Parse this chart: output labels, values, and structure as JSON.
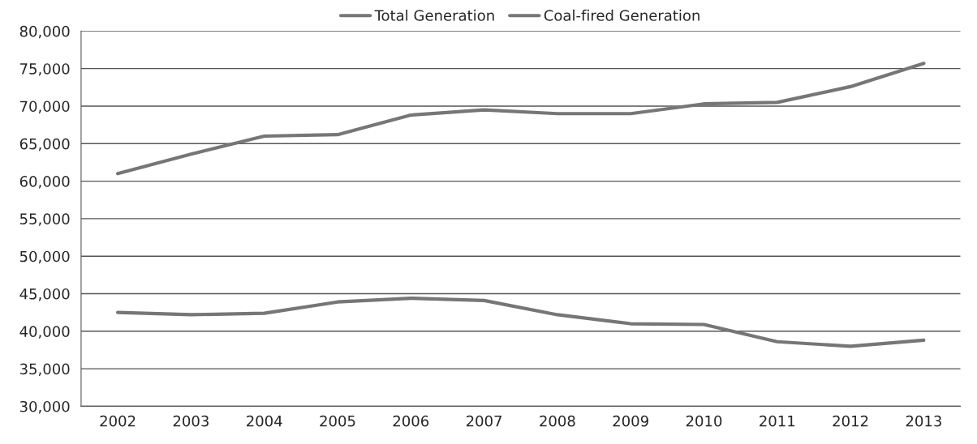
{
  "chart_data": {
    "type": "line",
    "categories": [
      "2002",
      "2003",
      "2004",
      "2005",
      "2006",
      "2007",
      "2008",
      "2009",
      "2010",
      "2011",
      "2012",
      "2013"
    ],
    "series": [
      {
        "name": "Total Generation",
        "color": "#767676",
        "values": [
          61000,
          63600,
          66000,
          66200,
          68800,
          69500,
          69000,
          69000,
          70300,
          70500,
          72600,
          75700
        ]
      },
      {
        "name": "Coal-fired Generation",
        "color": "#767676",
        "values": [
          42500,
          42200,
          42400,
          43900,
          44400,
          44100,
          42200,
          41000,
          40900,
          38600,
          38000,
          38800
        ]
      }
    ],
    "ylim": [
      30000,
      80000
    ],
    "yticks": [
      {
        "value": 30000,
        "label": "30,000"
      },
      {
        "value": 35000,
        "label": "35,000"
      },
      {
        "value": 40000,
        "label": "40,000"
      },
      {
        "value": 45000,
        "label": "45,000"
      },
      {
        "value": 50000,
        "label": "50,000"
      },
      {
        "value": 55000,
        "label": "55,000"
      },
      {
        "value": 60000,
        "label": "60,000"
      },
      {
        "value": 65000,
        "label": "65,000"
      },
      {
        "value": 70000,
        "label": "70,000"
      },
      {
        "value": 75000,
        "label": "75,000"
      },
      {
        "value": 80000,
        "label": "80,000"
      }
    ],
    "grid": "y",
    "legend": "top",
    "marker": "none",
    "line_style": "solid"
  }
}
